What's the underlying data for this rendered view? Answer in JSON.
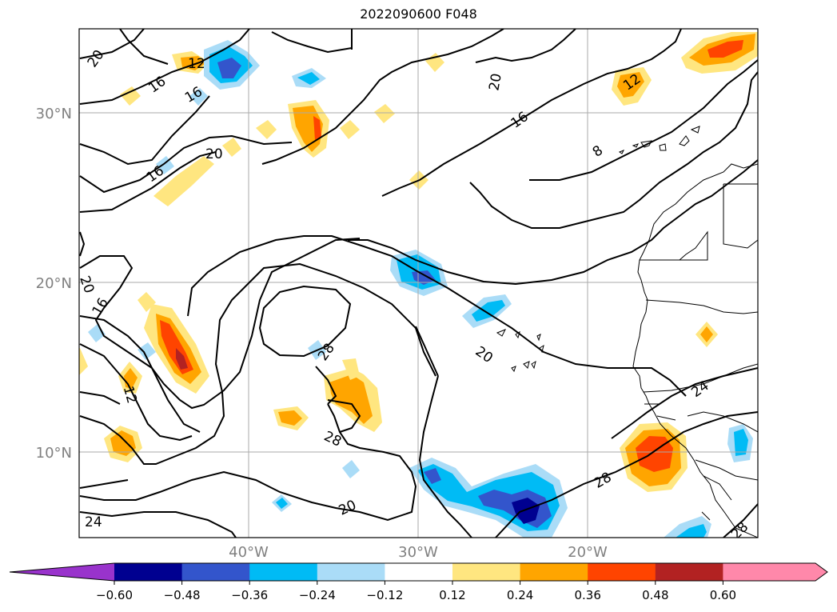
{
  "title": "2022090600 F048",
  "map": {
    "lat_labels": [
      "30°N",
      "20°N",
      "10°N"
    ],
    "lon_labels": [
      "40°W",
      "30°W",
      "20°W"
    ],
    "contour_labels": [
      "20",
      "16",
      "12",
      "16",
      "16",
      "20",
      "20",
      "16",
      "8",
      "12",
      "20",
      "16",
      "12",
      "28",
      "28",
      "20",
      "24",
      "20",
      "28",
      "24",
      "28"
    ]
  },
  "colorbar": {
    "ticks": [
      "−0.60",
      "−0.48",
      "−0.36",
      "−0.24",
      "−0.12",
      "0.12",
      "0.24",
      "0.36",
      "0.48",
      "0.60"
    ],
    "colors": [
      "#9933cc",
      "#000090",
      "#3355cc",
      "#00bbf5",
      "#aadcf7",
      "#ffffff",
      "#ffe680",
      "#ffa500",
      "#ff4400",
      "#b22222",
      "#ff88aa"
    ]
  }
}
